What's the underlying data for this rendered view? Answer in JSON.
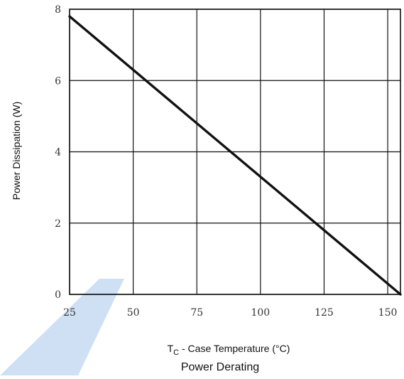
{
  "chart_data": {
    "type": "line",
    "title": "Power Derating",
    "xlabel": {
      "prefix": "T",
      "subscript": "C",
      "text": " - Case Temperature (°C)"
    },
    "ylabel": "Power Dissipation (W)",
    "xlim": [
      25,
      155
    ],
    "ylim": [
      0,
      8
    ],
    "xticks": [
      "25",
      "50",
      "75",
      "100",
      "125",
      "150"
    ],
    "yticks": [
      "0",
      "2",
      "4",
      "6",
      "8"
    ],
    "grid": true,
    "legend": "none",
    "series": [
      {
        "x": [
          25,
          155
        ],
        "y": [
          7.8,
          0
        ],
        "color": "#111111"
      }
    ]
  },
  "watermark_color": "#cfe0f5"
}
